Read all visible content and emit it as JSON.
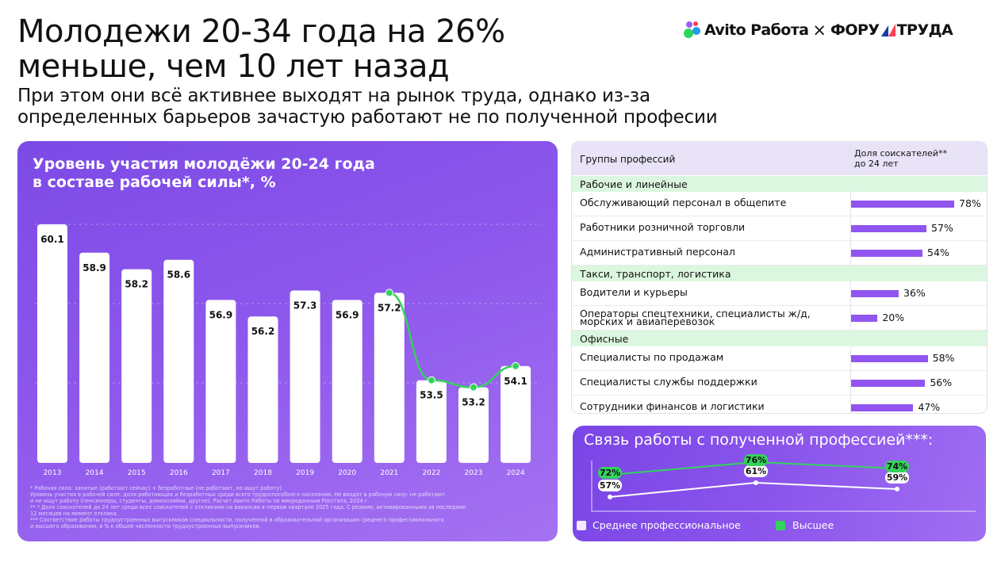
{
  "header": {
    "title_lines": [
      "Молодежи 20-34 года на 26%",
      "меньше, чем 10 лет назад"
    ],
    "subtitle_lines": [
      "При этом они всё активнее выходят на рынок труда, однако из-за",
      "определенных барьеров зачастую работают не по полученной професии"
    ]
  },
  "logo": {
    "brand": "Avito Работа",
    "separator": "×",
    "partner_a": "ФОРУ",
    "partner_b": "ТРУДА",
    "colors": {
      "green": "#2ed55e",
      "blue": "#1d9bf0",
      "purple": "#9b5cf5",
      "red": "#ff4053",
      "navy": "#1a3ca8"
    }
  },
  "colors": {
    "panel": "#8552ea",
    "bar": "#ffffff",
    "line": "#33d35e",
    "table_bar": "#9155ef",
    "group_bg": "#dcf7df",
    "head_bg": "#e9e3f7"
  },
  "chart_data": [
    {
      "type": "bar",
      "title_lines": [
        "Уровень участия молодёжи 20-24 года",
        "в составе рабочей силы*, %"
      ],
      "categories": [
        "2013",
        "2014",
        "2015",
        "2016",
        "2017",
        "2018",
        "2019",
        "2020",
        "2021",
        "2022",
        "2023",
        "2024"
      ],
      "values": [
        60.1,
        58.9,
        58.2,
        58.6,
        56.9,
        56.2,
        57.3,
        56.9,
        57.2,
        53.5,
        53.2,
        54.1
      ],
      "value_labels": [
        "60.1",
        "58.9",
        "58.2",
        "58.6",
        "56.9",
        "56.2",
        "57.3",
        "56.9",
        "57.2",
        "53.5",
        "53.2",
        "54.1"
      ],
      "overlay_line": {
        "categories": [
          "2021",
          "2022",
          "2023",
          "2024"
        ],
        "values": [
          57.2,
          53.5,
          53.2,
          54.1
        ]
      },
      "grid": true
    },
    {
      "type": "table",
      "columns": [
        "Группы профессий",
        "Доля соискателей** до 24 лет"
      ],
      "column_lines": [
        "Доля соискателей**",
        "до 24 лет"
      ],
      "groups": [
        {
          "name": "Рабочие и линейные",
          "rows": [
            {
              "label_lines": [
                "Обслуживающий персонал в общепите"
              ],
              "value": 78,
              "label": "78%"
            },
            {
              "label_lines": [
                "Работники розничной торговли"
              ],
              "value": 57,
              "label": "57%"
            },
            {
              "label_lines": [
                "Административный персонал"
              ],
              "value": 54,
              "label": "54%"
            }
          ]
        },
        {
          "name": "Такси, транспорт, логистика",
          "rows": [
            {
              "label_lines": [
                "Водители и курьеры"
              ],
              "value": 36,
              "label": "36%"
            },
            {
              "label_lines": [
                "Операторы спецтехники, специалисты ж/д,",
                "морских и авиаперевозок"
              ],
              "value": 20,
              "label": "20%"
            }
          ]
        },
        {
          "name": "Офисные",
          "rows": [
            {
              "label_lines": [
                "Специалисты по продажам"
              ],
              "value": 58,
              "label": "58%"
            },
            {
              "label_lines": [
                "Специалисты службы поддержки"
              ],
              "value": 56,
              "label": "56%"
            },
            {
              "label_lines": [
                "Сотрудники финансов и логистики"
              ],
              "value": 47,
              "label": "47%"
            }
          ]
        }
      ]
    },
    {
      "type": "line",
      "title": "Связь работы с полученной профессией***:",
      "x": [
        "",
        "",
        ""
      ],
      "series": [
        {
          "name": "Среднее профессиональное",
          "color": "#ffffff",
          "values": [
            57,
            61,
            59
          ],
          "labels": [
            "57%",
            "61%",
            "59%"
          ]
        },
        {
          "name": "Высшее",
          "color": "#33d35e",
          "values": [
            72,
            76,
            74
          ],
          "labels": [
            "72%",
            "76%",
            "74%"
          ]
        }
      ]
    }
  ],
  "footnotes": [
    "* Рабочая сила: занятые (работают сейчас) + безработные (не работают, но ищут работу).",
    "Уровень участия в рабочей силе: доля работающих и безработных среди всего трудоспособного населения. Не входят в рабочую силу: не работают",
    "и не ищут работу (пенсионеры, студенты, домохозяйки, другое). Расчет Авито Работы по микроданным Росстата, 2024 г.",
    "** * Доля соискателей до 24 лет среди всех соискателей с откликами на вакансии в первом квартале 2025 года. С резюме, активированными за последние",
    "12 месяцев на момент отклика.",
    "*** Соответствие работы трудоустроенных выпускников специальности, полученной в образовательной организации среднего профессионального",
    "и высшего образования, в % к общей численности трудоустроенных выпускников."
  ]
}
